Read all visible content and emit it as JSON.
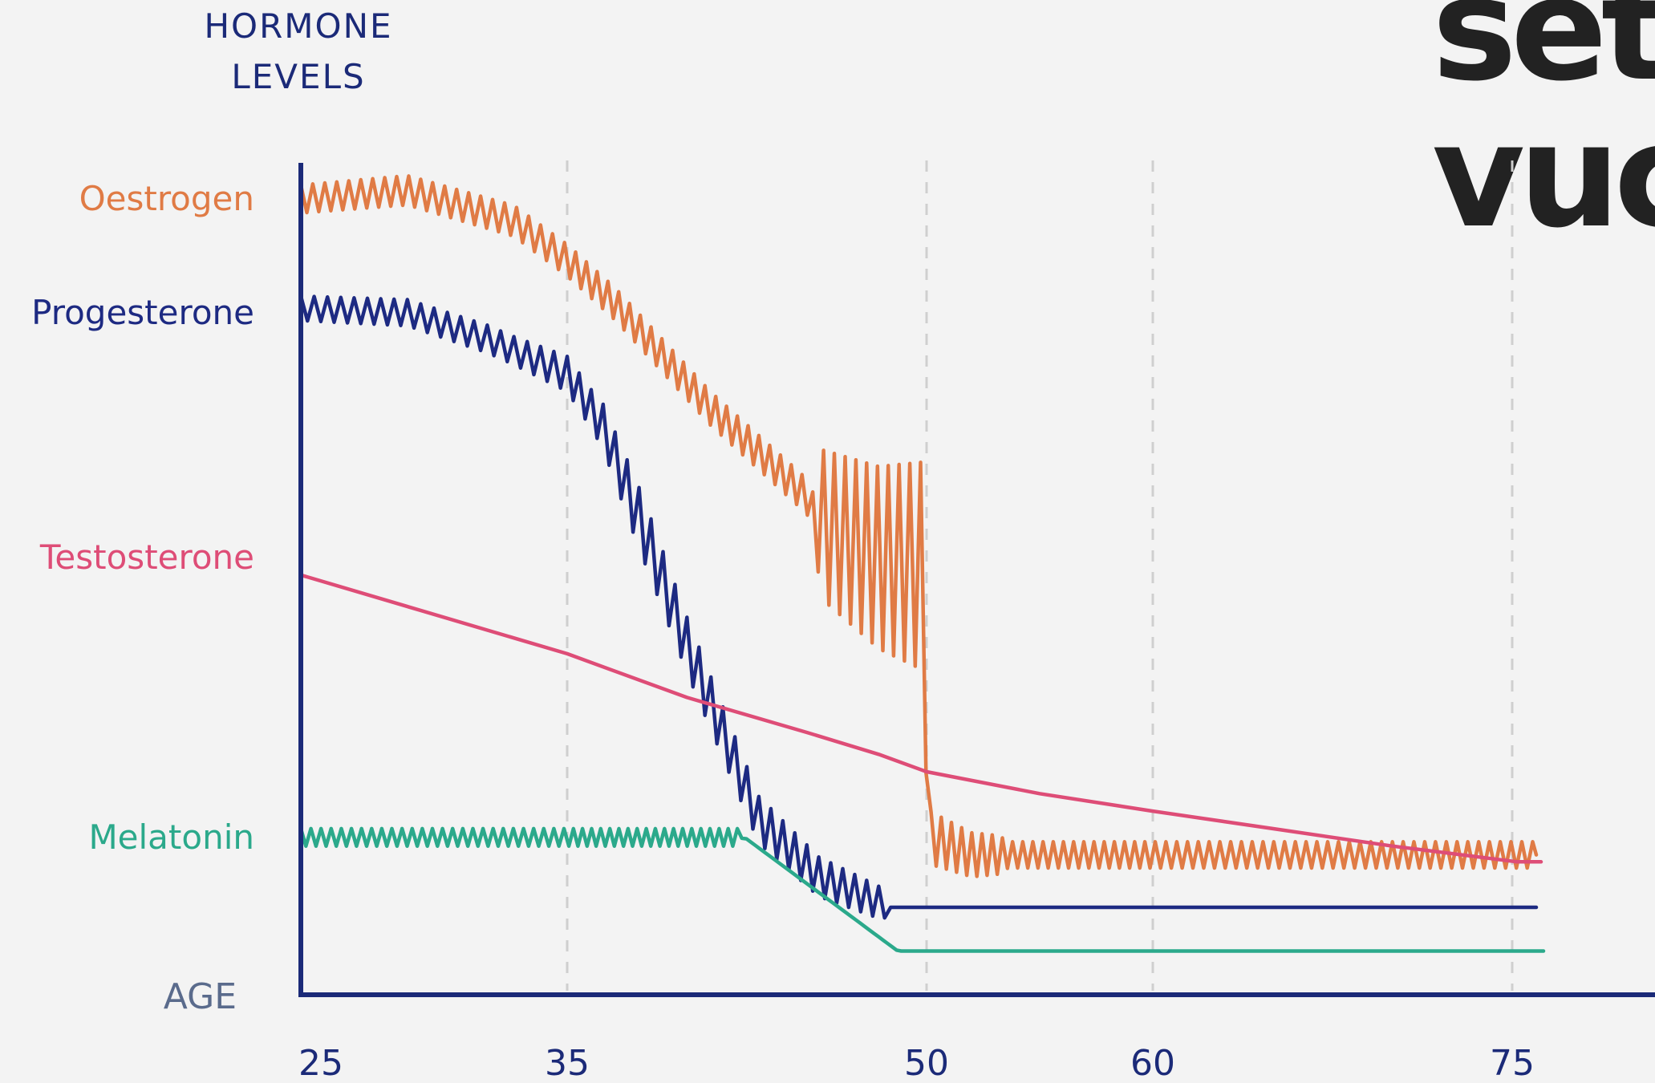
{
  "heading": {
    "line1": "set",
    "line2": "vuc"
  },
  "chart_data": {
    "type": "line",
    "title": "",
    "ylabel": "HORMONE LEVELS",
    "xlabel": "AGE",
    "x_ticks": [
      25,
      35,
      50,
      60,
      75
    ],
    "x_range": [
      25,
      76.5
    ],
    "y_range": [
      0,
      100
    ],
    "grid": "vertical dashed lines at 35, 50, 60, 75",
    "legend": "series labels on left of y-axis",
    "colors": {
      "axis": "#1b2a78",
      "oestrogen": "#e07b45",
      "progesterone": "#1d2a82",
      "testosterone": "#de4d77",
      "melatonin": "#2ba98b",
      "gridline": "#cfcfcf",
      "axis_label": "#5a6b8c"
    },
    "series": [
      {
        "name": "Oestrogen",
        "color_key": "oestrogen",
        "label_level": 91,
        "trend": [
          [
            25,
            91
          ],
          [
            29,
            92
          ],
          [
            33,
            88.5
          ],
          [
            35,
            84
          ],
          [
            37,
            79
          ],
          [
            41,
            67
          ],
          [
            45,
            57
          ],
          [
            45.5,
            54
          ],
          [
            48,
            50
          ],
          [
            49.9,
            49
          ],
          [
            50.1,
            18
          ],
          [
            52,
            16
          ],
          [
            76,
            16
          ]
        ],
        "oscillation": [
          [
            25,
            1.6
          ],
          [
            35,
            1.8
          ],
          [
            45.3,
            2.0
          ],
          [
            45.6,
            8.5
          ],
          [
            50,
            12
          ],
          [
            50.2,
            3
          ],
          [
            53.2,
            2.2
          ],
          [
            53.6,
            1.5
          ],
          [
            76,
            1.5
          ]
        ],
        "period": 0.45
      },
      {
        "name": "Progesterone",
        "color_key": "progesterone",
        "label_level": 78,
        "trend": [
          [
            25,
            78.5
          ],
          [
            29,
            78
          ],
          [
            32,
            75
          ],
          [
            35,
            71
          ],
          [
            36.5,
            65
          ],
          [
            38.5,
            51
          ],
          [
            40,
            40
          ],
          [
            41.5,
            30
          ],
          [
            43,
            20
          ],
          [
            45.5,
            13.5
          ],
          [
            48.5,
            10
          ],
          [
            48.7,
            10
          ],
          [
            76,
            10
          ]
        ],
        "oscillation": [
          [
            25,
            1.4
          ],
          [
            33,
            1.6
          ],
          [
            36,
            2.2
          ],
          [
            38,
            3.5
          ],
          [
            41,
            3.0
          ],
          [
            48.2,
            1.8
          ],
          [
            48.5,
            0
          ],
          [
            76,
            0
          ]
        ],
        "period": 0.5
      },
      {
        "name": "Testosterone",
        "color_key": "testosterone",
        "label_level": 50,
        "points": [
          [
            25,
            48
          ],
          [
            35,
            39
          ],
          [
            40,
            34
          ],
          [
            45,
            30
          ],
          [
            48,
            27.5
          ],
          [
            50,
            25.5
          ],
          [
            55,
            23
          ],
          [
            60,
            21
          ],
          [
            65,
            19
          ],
          [
            70,
            17
          ],
          [
            75.2,
            15.2
          ],
          [
            76.2,
            15.2
          ]
        ]
      },
      {
        "name": "Melatonin",
        "color_key": "melatonin",
        "label_level": 18,
        "trend": [
          [
            25,
            18
          ],
          [
            42.3,
            18
          ],
          [
            42.4,
            18
          ],
          [
            48.8,
            5
          ],
          [
            76.3,
            5
          ]
        ],
        "oscillation": [
          [
            25,
            1.0
          ],
          [
            42.2,
            1.0
          ],
          [
            42.3,
            0
          ],
          [
            76.3,
            0
          ]
        ],
        "period": 0.38
      }
    ]
  }
}
